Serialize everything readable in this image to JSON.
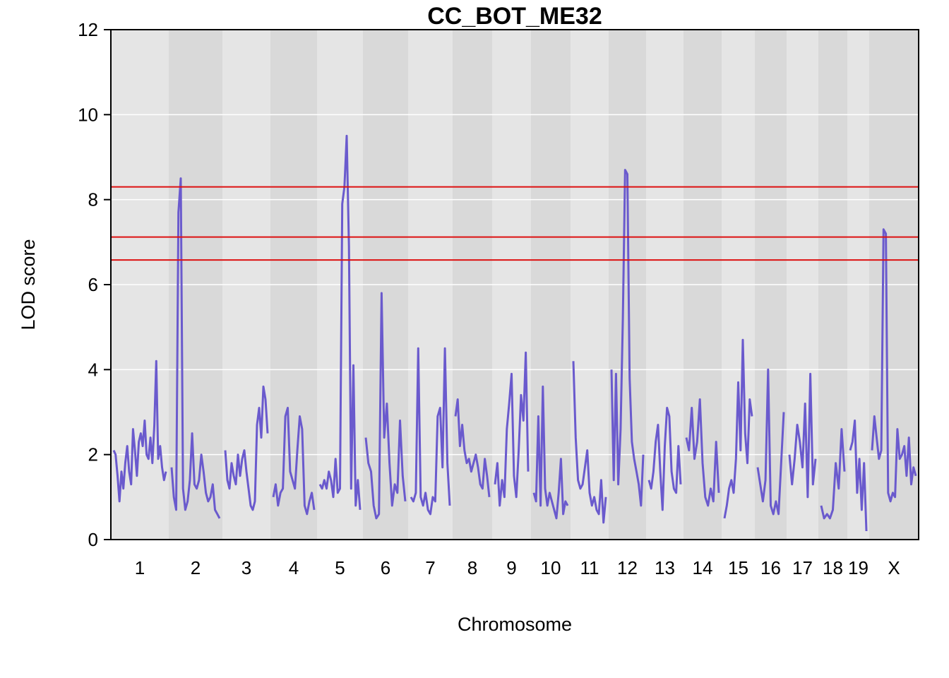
{
  "chart_data": {
    "type": "line",
    "title": "CC_BOT_ME32",
    "xlabel": "Chromosome",
    "ylabel": "LOD score",
    "ylim": [
      0,
      12
    ],
    "y_ticks": [
      0,
      2,
      4,
      6,
      8,
      10,
      12
    ],
    "grid": true,
    "thresholds": [
      8.3,
      7.12,
      6.58
    ],
    "colors": {
      "line": "#6a5acd",
      "threshold": "#dd1111",
      "band_light": "#e5e5e5",
      "band_dark": "#d9d9d9",
      "grid": "#ffffff"
    },
    "chromosomes": [
      {
        "label": "1",
        "profile": [
          2.1,
          2.0,
          1.5,
          0.9,
          1.6,
          1.2,
          1.8,
          2.2,
          1.6,
          1.3,
          2.6,
          2.1,
          1.5,
          2.3,
          2.5,
          2.2,
          2.8,
          2.0,
          1.9,
          2.4,
          1.8,
          2.7,
          4.2,
          1.9,
          2.2,
          1.7,
          1.4,
          1.6
        ]
      },
      {
        "label": "2",
        "profile": [
          1.7,
          1.0,
          0.7,
          7.7,
          8.5,
          1.2,
          0.7,
          0.9,
          1.4,
          2.5,
          1.3,
          1.2,
          1.4,
          2.0,
          1.6,
          1.1,
          0.9,
          1.0,
          1.3,
          0.7,
          0.6,
          0.5
        ]
      },
      {
        "label": "3",
        "profile": [
          2.1,
          1.4,
          1.2,
          1.8,
          1.5,
          1.3,
          2.0,
          1.5,
          1.9,
          2.1,
          1.6,
          1.2,
          0.8,
          0.7,
          0.9,
          2.7,
          3.1,
          2.4,
          3.6,
          3.3,
          2.5
        ]
      },
      {
        "label": "4",
        "profile": [
          1.0,
          1.3,
          0.8,
          1.1,
          1.2,
          2.9,
          3.1,
          1.6,
          1.4,
          1.2,
          2.1,
          2.9,
          2.6,
          0.8,
          0.6,
          0.9,
          1.1,
          0.7
        ]
      },
      {
        "label": "5",
        "profile": [
          1.3,
          1.2,
          1.4,
          1.2,
          1.6,
          1.4,
          1.0,
          1.9,
          1.1,
          1.2,
          7.9,
          8.3,
          9.5,
          6.9,
          1.2,
          4.1,
          0.8,
          1.4,
          0.7
        ]
      },
      {
        "label": "6",
        "profile": [
          2.4,
          1.8,
          1.6,
          0.8,
          0.5,
          0.6,
          5.8,
          2.4,
          3.2,
          1.8,
          0.8,
          1.3,
          1.1,
          2.8,
          1.5,
          0.9
        ]
      },
      {
        "label": "7",
        "profile": [
          1.0,
          0.9,
          1.1,
          4.5,
          1.0,
          0.8,
          1.1,
          0.7,
          0.6,
          1.0,
          0.9,
          2.9,
          3.1,
          1.7,
          4.5,
          1.8,
          0.8
        ]
      },
      {
        "label": "8",
        "profile": [
          2.9,
          3.3,
          2.2,
          2.7,
          2.1,
          1.8,
          1.9,
          1.6,
          1.8,
          2.0,
          1.7,
          1.3,
          1.2,
          1.9,
          1.5,
          1.0
        ]
      },
      {
        "label": "9",
        "profile": [
          1.3,
          1.8,
          0.8,
          1.4,
          1.0,
          2.6,
          3.2,
          3.9,
          1.5,
          1.0,
          2.1,
          3.4,
          2.8,
          4.4,
          1.6
        ]
      },
      {
        "label": "10",
        "profile": [
          1.1,
          0.9,
          2.9,
          0.8,
          3.6,
          1.2,
          0.8,
          1.1,
          0.9,
          0.7,
          0.5,
          1.1,
          1.9,
          0.6,
          0.9,
          0.8
        ]
      },
      {
        "label": "11",
        "profile": [
          4.2,
          2.4,
          1.4,
          1.2,
          1.3,
          1.7,
          2.1,
          1.1,
          0.8,
          1.0,
          0.7,
          0.6,
          1.4,
          0.4,
          1.0
        ]
      },
      {
        "label": "12",
        "profile": [
          4.0,
          1.4,
          3.9,
          1.3,
          2.6,
          5.2,
          8.7,
          8.6,
          3.8,
          2.3,
          1.9,
          1.6,
          1.3,
          0.8,
          2.0
        ]
      },
      {
        "label": "13",
        "profile": [
          1.4,
          1.2,
          1.6,
          2.3,
          2.7,
          1.6,
          0.7,
          2.2,
          3.1,
          2.9,
          1.6,
          1.2,
          1.1,
          2.2,
          1.3
        ]
      },
      {
        "label": "14",
        "profile": [
          2.4,
          2.1,
          3.1,
          1.9,
          2.3,
          3.3,
          1.8,
          1.0,
          0.8,
          1.2,
          0.9,
          2.3,
          1.1
        ]
      },
      {
        "label": "15",
        "profile": [
          0.5,
          0.8,
          1.2,
          1.4,
          1.1,
          1.9,
          3.7,
          2.1,
          4.7,
          2.5,
          1.8,
          3.3,
          2.9
        ]
      },
      {
        "label": "16",
        "profile": [
          1.7,
          1.3,
          0.9,
          1.4,
          4.0,
          0.8,
          0.6,
          0.9,
          0.6,
          1.8,
          3.0
        ]
      },
      {
        "label": "17",
        "profile": [
          2.0,
          1.3,
          1.9,
          2.7,
          2.3,
          1.7,
          3.2,
          1.0,
          3.9,
          1.3,
          1.9
        ]
      },
      {
        "label": "18",
        "profile": [
          0.8,
          0.5,
          0.6,
          0.5,
          0.7,
          1.8,
          1.2,
          2.6,
          1.6
        ]
      },
      {
        "label": "19",
        "profile": [
          2.1,
          2.3,
          2.8,
          1.1,
          1.9,
          0.7,
          1.8,
          0.2
        ]
      },
      {
        "label": "X",
        "profile": [
          2.1,
          2.9,
          2.4,
          1.9,
          2.1,
          7.3,
          7.2,
          1.1,
          0.9,
          1.1,
          1.0,
          2.6,
          1.9,
          2.0,
          2.2,
          1.5,
          2.4,
          1.3,
          1.7,
          1.5
        ]
      }
    ]
  }
}
